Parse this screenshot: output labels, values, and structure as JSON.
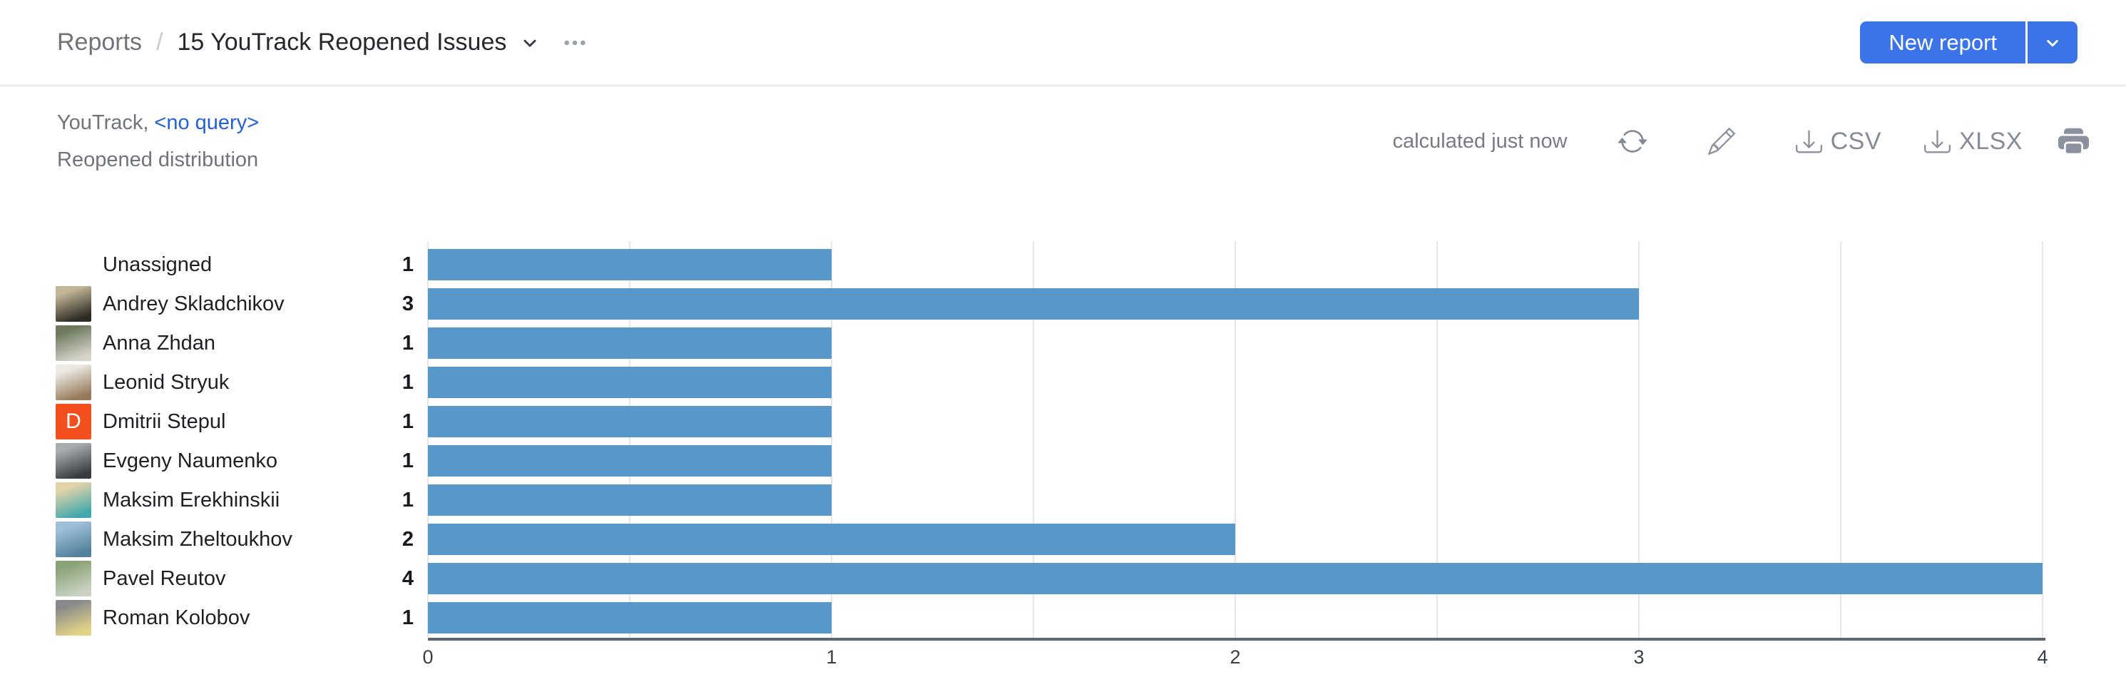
{
  "header": {
    "breadcrumb": "Reports",
    "separator": "/",
    "title": "15 YouTrack Reopened Issues",
    "new_report_label": "New report"
  },
  "subheader": {
    "source_prefix": "YouTrack,",
    "query_link": "<no query>",
    "report_type": "Reopened distribution"
  },
  "toolbar": {
    "calculated": "calculated just now",
    "csv_label": "CSV",
    "xlsx_label": "XLSX",
    "icons": [
      "refresh-icon",
      "edit-pencil-icon",
      "download-icon",
      "print-icon"
    ]
  },
  "colors": {
    "primary_button": "#3b73e8",
    "link": "#2361d6",
    "bar": "#5797c9",
    "axis": "#5c6672",
    "gridline": "#e4e6e9",
    "muted_text": "#6f747b",
    "icon_gray": "#8b919e",
    "letter_avatar_bg": "#f4501f"
  },
  "chart_data": {
    "type": "bar",
    "orientation": "horizontal",
    "title": "Reopened distribution",
    "xlabel": "",
    "ylabel": "",
    "xlim": [
      0,
      4
    ],
    "x_ticks": [
      0,
      1,
      2,
      3,
      4
    ],
    "gridline_step": 0.5,
    "grid": true,
    "legend": false,
    "bar_color": "#5797c9",
    "categories": [
      "Unassigned",
      "Andrey Skladchikov",
      "Anna Zhdan",
      "Leonid Stryuk",
      "Dmitrii Stepul",
      "Evgeny Naumenko",
      "Maksim Erekhinskii",
      "Maksim Zheltoukhov",
      "Pavel Reutov",
      "Roman Kolobov"
    ],
    "values": [
      1,
      3,
      1,
      1,
      1,
      1,
      1,
      2,
      4,
      1
    ],
    "rows": [
      {
        "name": "Unassigned",
        "value": 1,
        "avatar": null
      },
      {
        "name": "Andrey Skladchikov",
        "value": 3,
        "avatar": {
          "kind": "photo",
          "colors": [
            "#c3b796",
            "#2e2a26"
          ]
        }
      },
      {
        "name": "Anna Zhdan",
        "value": 1,
        "avatar": {
          "kind": "photo",
          "colors": [
            "#6e7a60",
            "#d6d3c9"
          ]
        }
      },
      {
        "name": "Leonid Stryuk",
        "value": 1,
        "avatar": {
          "kind": "photo",
          "colors": [
            "#ece9e3",
            "#97795a"
          ]
        }
      },
      {
        "name": "Dmitrii Stepul",
        "value": 1,
        "avatar": {
          "kind": "letter",
          "letter": "D",
          "bg": "#f4501f",
          "fg": "#ffffff"
        }
      },
      {
        "name": "Evgeny Naumenko",
        "value": 1,
        "avatar": {
          "kind": "photo",
          "colors": [
            "#a8acae",
            "#3a3d40"
          ]
        }
      },
      {
        "name": "Maksim Erekhinskii",
        "value": 1,
        "avatar": {
          "kind": "photo",
          "colors": [
            "#e3d3a8",
            "#43a8ab"
          ]
        }
      },
      {
        "name": "Maksim Zheltoukhov",
        "value": 2,
        "avatar": {
          "kind": "photo",
          "colors": [
            "#9fc0da",
            "#52819b"
          ]
        }
      },
      {
        "name": "Pavel Reutov",
        "value": 4,
        "avatar": {
          "kind": "photo",
          "colors": [
            "#8aa376",
            "#c9d2c4"
          ]
        }
      },
      {
        "name": "Roman Kolobov",
        "value": 1,
        "avatar": {
          "kind": "photo",
          "colors": [
            "#87898a",
            "#e4d488"
          ]
        }
      }
    ]
  }
}
